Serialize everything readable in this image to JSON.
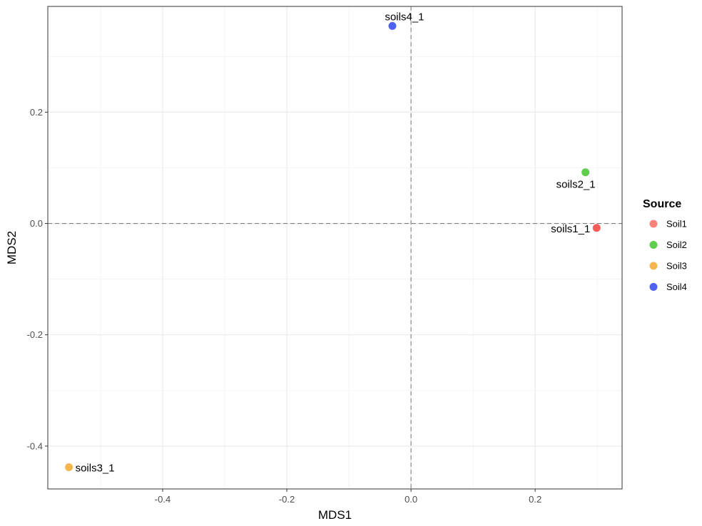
{
  "chart_data": {
    "type": "scatter",
    "xlabel": "MDS1",
    "ylabel": "MDS2",
    "xlim": [
      -0.585,
      0.34
    ],
    "ylim": [
      -0.477,
      0.39
    ],
    "x_ticks": [
      -0.4,
      -0.2,
      0.0,
      0.2
    ],
    "x_tick_labels": [
      "-0.4",
      "-0.2",
      "0.0",
      "0.2"
    ],
    "y_ticks": [
      -0.4,
      -0.2,
      0.0,
      0.2
    ],
    "y_tick_labels": [
      "-0.4",
      "-0.2",
      "0.0",
      "0.2"
    ],
    "grid": true,
    "reference_lines": {
      "x": 0.0,
      "y": 0.0,
      "style": "dashed"
    },
    "legend": {
      "title": "Source",
      "position": "right",
      "entries": [
        {
          "name": "Soil1",
          "color": "#f8766d"
        },
        {
          "name": "Soil2",
          "color": "#4fc93a"
        },
        {
          "name": "Soil3",
          "color": "#f5ad3c"
        },
        {
          "name": "Soil4",
          "color": "#3b50f0"
        }
      ]
    },
    "points": [
      {
        "label": "soils1_1",
        "source": "Soil1",
        "x": 0.299,
        "y": -0.008,
        "color": "#f64a48",
        "label_anchor": "left"
      },
      {
        "label": "soils2_1",
        "source": "Soil2",
        "x": 0.281,
        "y": 0.092,
        "color": "#4fc93a",
        "label_anchor": "below"
      },
      {
        "label": "soils3_1",
        "source": "Soil3",
        "x": -0.551,
        "y": -0.438,
        "color": "#f5ad3c",
        "label_anchor": "right"
      },
      {
        "label": "soils4_1",
        "source": "Soil4",
        "x": -0.03,
        "y": 0.355,
        "color": "#3b50f0",
        "label_anchor": "above"
      }
    ]
  }
}
